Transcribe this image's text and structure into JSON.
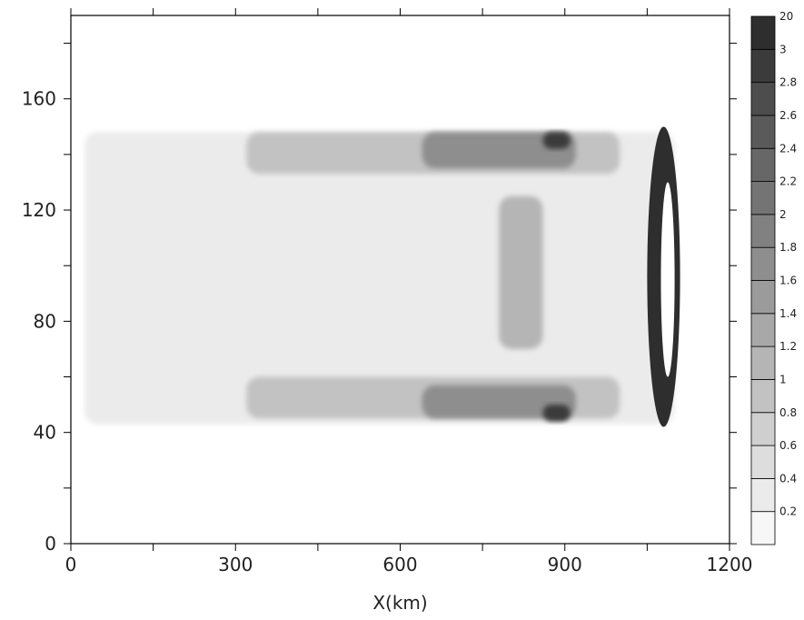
{
  "chart_data": {
    "type": "heatmap",
    "title": "",
    "xlabel": "X(km)",
    "ylabel": "",
    "xlim": [
      0,
      1200
    ],
    "ylim": [
      0,
      190
    ],
    "x_ticks": [
      "0",
      "300",
      "600",
      "900",
      "1200"
    ],
    "y_ticks": [
      "0",
      "40",
      "80",
      "120",
      "160"
    ],
    "x_tick_values": [
      0,
      300,
      600,
      900,
      1200
    ],
    "y_tick_values": [
      0,
      40,
      80,
      120,
      160
    ],
    "grid": false,
    "colorbar": {
      "levels": [
        "0.2",
        "0.4",
        "0.6",
        "0.8",
        "1",
        "1.2",
        "1.4",
        "1.6",
        "1.8",
        "2",
        "2.2",
        "2.4",
        "2.6",
        "2.8",
        "3",
        "20"
      ],
      "colors": [
        "#f7f7f7",
        "#ebebeb",
        "#dddddd",
        "#cfcfcf",
        "#c2c2c2",
        "#b5b5b5",
        "#a8a8a8",
        "#9b9b9b",
        "#8e8e8e",
        "#818181",
        "#747474",
        "#676767",
        "#5a5a5a",
        "#4d4d4d",
        "#3b3b3b",
        "#2e2e2e"
      ]
    },
    "field_regions": [
      {
        "x": [
          25,
          1100
        ],
        "y": [
          43,
          148
        ],
        "value": 0.3
      },
      {
        "x": [
          320,
          1000
        ],
        "y": [
          45,
          60
        ],
        "value": 0.9
      },
      {
        "x": [
          320,
          1000
        ],
        "y": [
          133,
          148
        ],
        "value": 0.9
      },
      {
        "x": [
          640,
          920
        ],
        "y": [
          45,
          57
        ],
        "value": 1.7
      },
      {
        "x": [
          640,
          920
        ],
        "y": [
          135,
          148
        ],
        "value": 1.7
      },
      {
        "x": [
          860,
          910
        ],
        "y": [
          44,
          50
        ],
        "value": 2.9
      },
      {
        "x": [
          860,
          910
        ],
        "y": [
          142,
          148
        ],
        "value": 2.9
      },
      {
        "x": [
          780,
          860
        ],
        "y": [
          70,
          125
        ],
        "value": 1.2
      },
      {
        "x": [
          1050,
          1110
        ],
        "y": [
          42,
          150
        ],
        "value": 20
      },
      {
        "x": [
          1075,
          1100
        ],
        "y": [
          60,
          130
        ],
        "value": 0.1
      }
    ]
  }
}
